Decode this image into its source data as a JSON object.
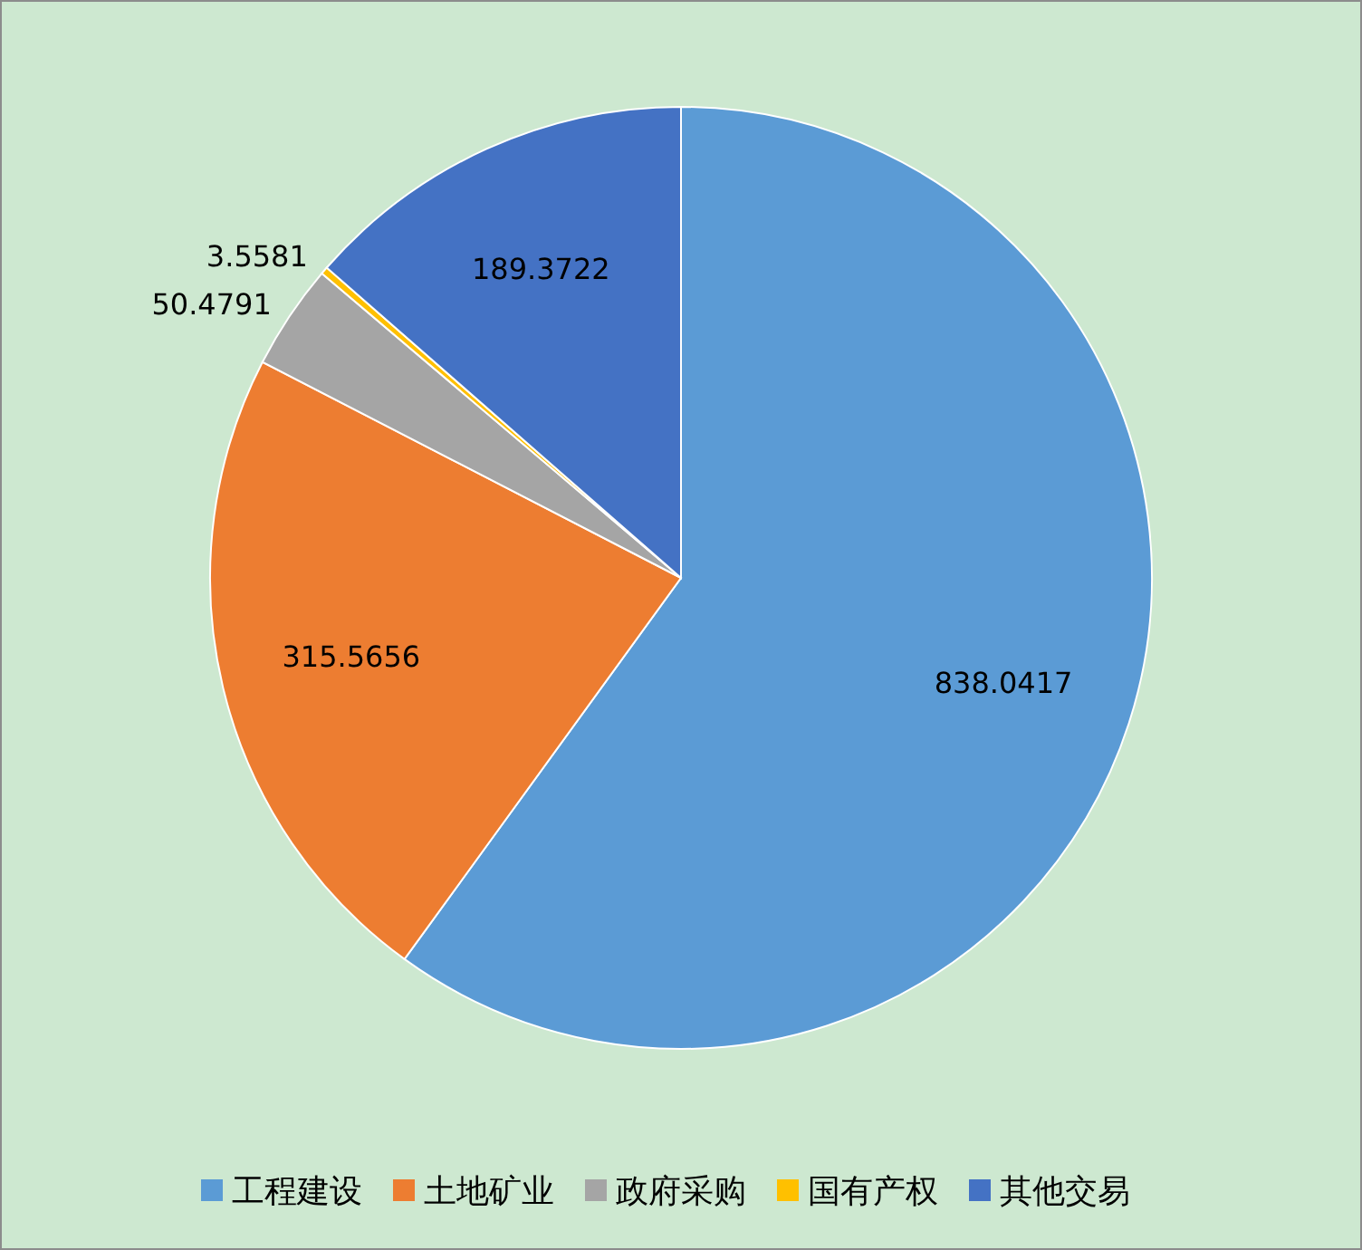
{
  "chart_data": {
    "type": "pie",
    "categories": [
      "工程建设",
      "土地矿业",
      "政府采购",
      "国有产权",
      "其他交易"
    ],
    "values": [
      838.0417,
      315.5656,
      50.4791,
      3.5581,
      189.3722
    ],
    "colors": [
      "#5b9bd5",
      "#ed7d31",
      "#a5a5a5",
      "#ffc000",
      "#4472c4"
    ],
    "data_labels": true,
    "legend": "bottom"
  }
}
